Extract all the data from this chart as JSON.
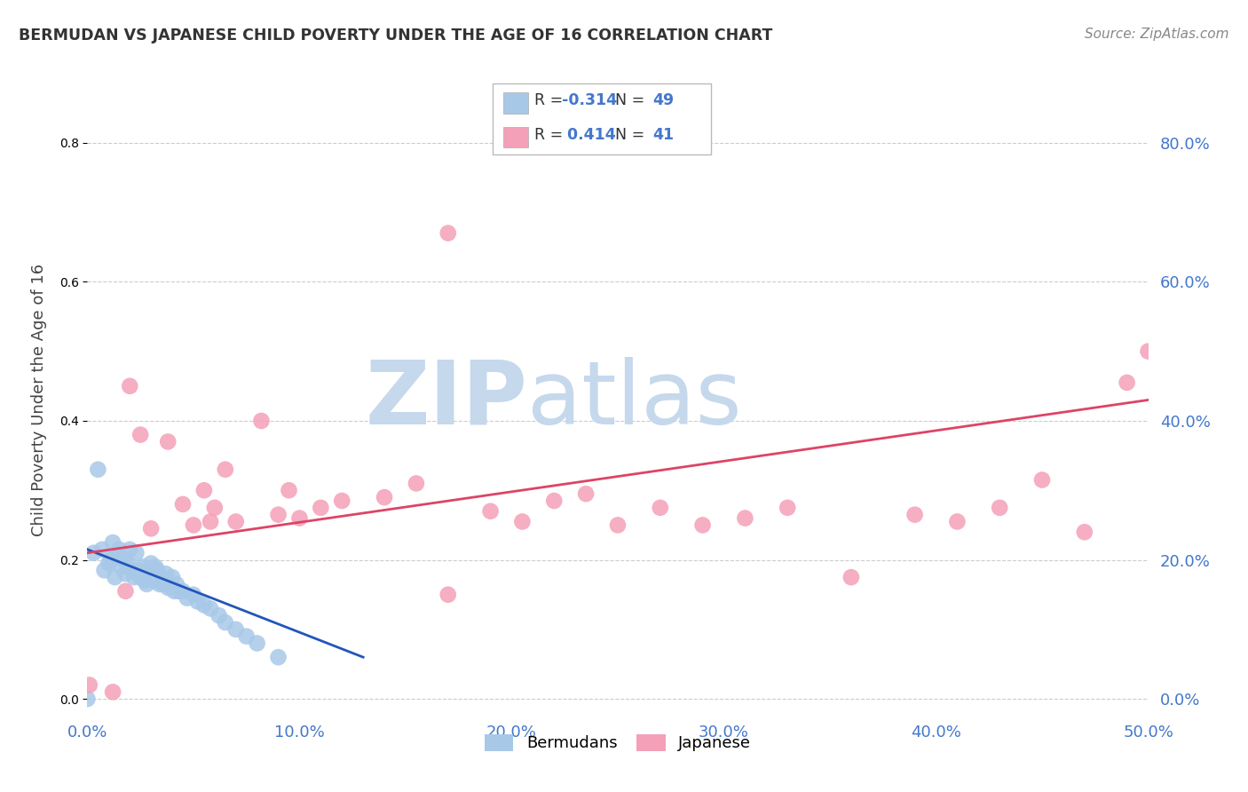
{
  "title": "BERMUDAN VS JAPANESE CHILD POVERTY UNDER THE AGE OF 16 CORRELATION CHART",
  "source": "Source: ZipAtlas.com",
  "ylabel": "Child Poverty Under the Age of 16",
  "xlim": [
    0.0,
    0.5
  ],
  "ylim": [
    -0.02,
    0.88
  ],
  "xtick_vals": [
    0.0,
    0.1,
    0.2,
    0.3,
    0.4,
    0.5
  ],
  "ytick_vals": [
    0.0,
    0.2,
    0.4,
    0.6,
    0.8
  ],
  "bermudan_R": -0.314,
  "bermudan_N": 49,
  "japanese_R": 0.414,
  "japanese_N": 41,
  "bermudan_color": "#a8c8e8",
  "japanese_color": "#f4a0b8",
  "bermudan_line_color": "#2255bb",
  "japanese_line_color": "#dd4466",
  "watermark_zip": "ZIP",
  "watermark_atlas": "atlas",
  "watermark_color": "#c5d8ec",
  "legend_label_bermudan": "Bermudans",
  "legend_label_japanese": "Japanese",
  "bermudan_x": [
    0.0,
    0.003,
    0.005,
    0.007,
    0.008,
    0.01,
    0.011,
    0.012,
    0.013,
    0.014,
    0.015,
    0.016,
    0.017,
    0.018,
    0.019,
    0.02,
    0.021,
    0.022,
    0.023,
    0.024,
    0.025,
    0.026,
    0.027,
    0.028,
    0.03,
    0.031,
    0.032,
    0.033,
    0.034,
    0.035,
    0.036,
    0.037,
    0.038,
    0.04,
    0.041,
    0.042,
    0.043,
    0.045,
    0.047,
    0.05,
    0.052,
    0.055,
    0.058,
    0.062,
    0.065,
    0.07,
    0.075,
    0.08,
    0.09
  ],
  "bermudan_y": [
    0.0,
    0.21,
    0.33,
    0.215,
    0.185,
    0.195,
    0.2,
    0.225,
    0.175,
    0.205,
    0.215,
    0.19,
    0.2,
    0.18,
    0.195,
    0.215,
    0.185,
    0.175,
    0.21,
    0.185,
    0.175,
    0.19,
    0.17,
    0.165,
    0.195,
    0.17,
    0.19,
    0.185,
    0.165,
    0.175,
    0.165,
    0.18,
    0.16,
    0.175,
    0.155,
    0.165,
    0.155,
    0.155,
    0.145,
    0.15,
    0.14,
    0.135,
    0.13,
    0.12,
    0.11,
    0.1,
    0.09,
    0.08,
    0.06
  ],
  "japanese_x": [
    0.001,
    0.012,
    0.018,
    0.02,
    0.025,
    0.03,
    0.038,
    0.045,
    0.05,
    0.055,
    0.058,
    0.06,
    0.065,
    0.07,
    0.082,
    0.09,
    0.095,
    0.1,
    0.11,
    0.12,
    0.14,
    0.155,
    0.17,
    0.19,
    0.205,
    0.22,
    0.235,
    0.25,
    0.27,
    0.29,
    0.31,
    0.33,
    0.36,
    0.39,
    0.41,
    0.43,
    0.45,
    0.47,
    0.49,
    0.5,
    0.17
  ],
  "japanese_y": [
    0.02,
    0.01,
    0.155,
    0.45,
    0.38,
    0.245,
    0.37,
    0.28,
    0.25,
    0.3,
    0.255,
    0.275,
    0.33,
    0.255,
    0.4,
    0.265,
    0.3,
    0.26,
    0.275,
    0.285,
    0.29,
    0.31,
    0.15,
    0.27,
    0.255,
    0.285,
    0.295,
    0.25,
    0.275,
    0.25,
    0.26,
    0.275,
    0.175,
    0.265,
    0.255,
    0.275,
    0.315,
    0.24,
    0.455,
    0.5,
    0.67
  ],
  "bermudan_line_x": [
    0.0,
    0.13
  ],
  "bermudan_line_y": [
    0.215,
    0.06
  ],
  "japanese_line_x": [
    0.0,
    0.5
  ],
  "japanese_line_y": [
    0.21,
    0.43
  ]
}
